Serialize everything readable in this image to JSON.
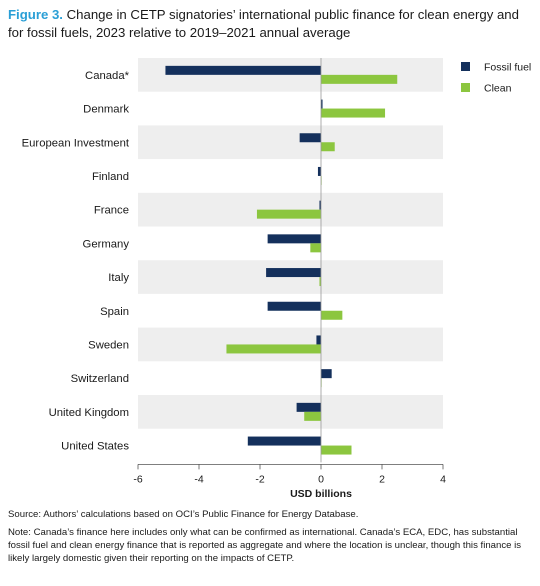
{
  "title": {
    "figure_label": "Figure 3.",
    "text": "Change in CETP signatories’ international public finance for clean energy and for fossil fuels, 2023 relative to 2019–2021 annual average"
  },
  "chart_data": {
    "type": "bar",
    "orientation": "horizontal",
    "categories": [
      "Canada*",
      "Denmark",
      "European Investment",
      "Finland",
      "France",
      "Germany",
      "Italy",
      "Spain",
      "Sweden",
      "Switzerland",
      "United Kingdom",
      "United States"
    ],
    "series": [
      {
        "name": "Fossil fuel",
        "color": "#14305c",
        "values": [
          -5.1,
          0.05,
          -0.7,
          -0.1,
          -0.05,
          -1.75,
          -1.8,
          -1.75,
          -0.15,
          0.35,
          -0.8,
          -2.4
        ]
      },
      {
        "name": "Clean",
        "color": "#8cc63f",
        "values": [
          2.5,
          2.1,
          0.45,
          0.02,
          -2.1,
          -0.35,
          -0.05,
          0.7,
          -3.1,
          0.0,
          -0.55,
          1.0
        ]
      }
    ],
    "xlabel": "USD billions",
    "xlim": [
      -6,
      4
    ],
    "xticks": [
      -6,
      -4,
      -2,
      0,
      2,
      4
    ],
    "legend_position": "top-right",
    "banded_rows": true,
    "band_color": "#eeeeee"
  },
  "source": "Source: Authors’ calculations based on OCI’s Public Finance for Energy Database.",
  "note": "Note: Canada’s finance here includes only what can be confirmed as international. Canada’s ECA, EDC, has substantial fossil fuel and clean energy finance that is reported as aggregate and where the location is unclear, though this finance is likely largely domestic given their reporting on the impacts of CETP."
}
